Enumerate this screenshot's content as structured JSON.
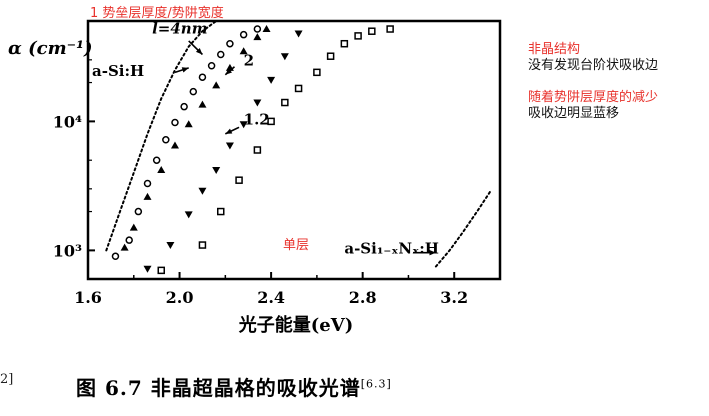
{
  "annotations": {
    "top_label": "1 势垒层厚度/势阱宽度",
    "right_label_1_red": "非晶结构",
    "right_label_1_black": "没有发现台阶状吸收边",
    "right_label_2_red": "随着势阱层厚度的减少",
    "right_label_2_black": "吸收边明显蓝移",
    "monolayer_red": "单层"
  },
  "caption": {
    "left_fragment": "2]",
    "text": "图 6.7   非晶超晶格的吸收光谱",
    "ref": "[6.3]"
  },
  "chart_data": {
    "type": "scatter",
    "title": "",
    "xlabel": "光子能量(eV)",
    "ylabel": "α (cm⁻¹)",
    "xlim": [
      1.6,
      3.4
    ],
    "ylim": [
      600,
      60000
    ],
    "y_scale": "log",
    "x_ticks": [
      "1.6",
      "2.0",
      "2.4",
      "2.8",
      "3.2"
    ],
    "y_ticks": [
      {
        "value": 1000,
        "label": "10³"
      },
      {
        "value": 10000,
        "label": "10⁴"
      }
    ],
    "inplot_labels": {
      "l4": "l=4nm",
      "asi": "a-Si:H",
      "l2": "2",
      "l12": "1.2",
      "sinx": "a-Si₁₋ₓNₓ:H"
    },
    "series": [
      {
        "name": "a-Si:H",
        "marker": "dotted-line",
        "x": [
          1.68,
          1.74,
          1.8,
          1.86,
          1.92,
          1.98,
          2.04,
          2.1,
          2.16
        ],
        "y": [
          1000,
          2000,
          4000,
          8000,
          15000,
          25000,
          38000,
          50000,
          60000
        ]
      },
      {
        "name": "l=4nm",
        "marker": "circle",
        "x": [
          1.72,
          1.78,
          1.82,
          1.86,
          1.9,
          1.94,
          1.98,
          2.02,
          2.06,
          2.1,
          2.14,
          2.18,
          2.22,
          2.28,
          2.34
        ],
        "y": [
          900,
          1200,
          2000,
          3300,
          5000,
          7200,
          9800,
          13000,
          17000,
          22000,
          27000,
          33000,
          40000,
          47000,
          52000
        ]
      },
      {
        "name": "",
        "marker": "triangle-up",
        "x": [
          1.76,
          1.8,
          1.86,
          1.92,
          1.98,
          2.04,
          2.1,
          2.16,
          2.22,
          2.28,
          2.34,
          2.38
        ],
        "y": [
          1050,
          1500,
          2600,
          4200,
          6500,
          9500,
          13500,
          19000,
          26000,
          35000,
          45000,
          52000
        ]
      },
      {
        "name": "2",
        "marker": "triangle-down",
        "x": [
          1.86,
          1.96,
          2.04,
          2.1,
          2.16,
          2.22,
          2.28,
          2.34,
          2.4,
          2.46,
          2.52
        ],
        "y": [
          720,
          1100,
          1900,
          2900,
          4200,
          6500,
          9500,
          14000,
          21000,
          32000,
          48000
        ]
      },
      {
        "name": "1.2",
        "marker": "square",
        "x": [
          1.92,
          2.1,
          2.18,
          2.26,
          2.34,
          2.4,
          2.46,
          2.52,
          2.6,
          2.66,
          2.72,
          2.78,
          2.84,
          2.92
        ],
        "y": [
          700,
          1100,
          2000,
          3500,
          6000,
          10000,
          14000,
          18000,
          24000,
          32000,
          40000,
          46000,
          50000,
          52000
        ]
      },
      {
        "name": "a-Si₁₋ₓNₓ:H",
        "marker": "dotted-line",
        "x": [
          3.12,
          3.18,
          3.24,
          3.3,
          3.36
        ],
        "y": [
          750,
          1000,
          1400,
          2000,
          2900
        ]
      }
    ]
  }
}
